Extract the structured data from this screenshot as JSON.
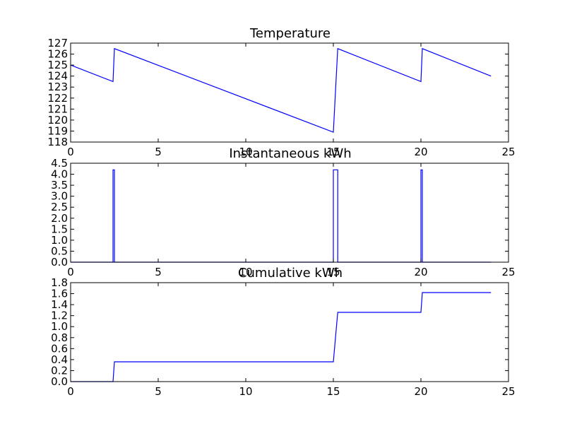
{
  "chart_data": [
    {
      "type": "line",
      "title": "Temperature",
      "xlabel": "",
      "ylabel": "",
      "xlim": [
        0,
        25
      ],
      "ylim": [
        118,
        127
      ],
      "xticks": [
        0,
        5,
        10,
        15,
        20,
        25
      ],
      "yticks": [
        118,
        119,
        120,
        121,
        122,
        123,
        124,
        125,
        126,
        127
      ],
      "xticklabels": [
        "0",
        "5",
        "10",
        "15",
        "20",
        "25"
      ],
      "yticklabels": [
        "118",
        "119",
        "120",
        "121",
        "122",
        "123",
        "124",
        "125",
        "126",
        "127"
      ],
      "grid": false,
      "series": [
        {
          "color": "#0000ff",
          "x": [
            0,
            2.42,
            2.5,
            15.0,
            15.25,
            20.0,
            20.08,
            24.0
          ],
          "y": [
            125.0,
            123.5,
            126.5,
            118.9,
            126.5,
            123.5,
            126.5,
            124.0
          ]
        }
      ]
    },
    {
      "type": "line",
      "title": "Instantaneous kWh",
      "xlabel": "",
      "ylabel": "",
      "xlim": [
        0,
        25
      ],
      "ylim": [
        0,
        4.5
      ],
      "xticks": [
        0,
        5,
        10,
        15,
        20,
        25
      ],
      "yticks": [
        0,
        0.5,
        1.0,
        1.5,
        2.0,
        2.5,
        3.0,
        3.5,
        4.0,
        4.5
      ],
      "xticklabels": [
        "0",
        "5",
        "10",
        "15",
        "20",
        "25"
      ],
      "yticklabels": [
        "0.0",
        "0.5",
        "1.0",
        "1.5",
        "2.0",
        "2.5",
        "3.0",
        "3.5",
        "4.0",
        "4.5"
      ],
      "grid": false,
      "series": [
        {
          "color": "#0000ff",
          "x": [
            0,
            2.42,
            2.42,
            2.5,
            2.5,
            15.0,
            15.0,
            15.25,
            15.25,
            20.0,
            20.0,
            20.08,
            20.08,
            24.0
          ],
          "y": [
            0,
            0,
            4.2,
            4.2,
            0,
            0,
            4.2,
            4.2,
            0,
            0,
            4.2,
            4.2,
            0,
            0
          ]
        }
      ]
    },
    {
      "type": "line",
      "title": "Cumulative kWh",
      "xlabel": "",
      "ylabel": "",
      "xlim": [
        0,
        25
      ],
      "ylim": [
        0,
        1.8
      ],
      "xticks": [
        0,
        5,
        10,
        15,
        20,
        25
      ],
      "yticks": [
        0,
        0.2,
        0.4,
        0.6,
        0.8,
        1.0,
        1.2,
        1.4,
        1.6,
        1.8
      ],
      "xticklabels": [
        "0",
        "5",
        "10",
        "15",
        "20",
        "25"
      ],
      "yticklabels": [
        "0.0",
        "0.2",
        "0.4",
        "0.6",
        "0.8",
        "1.0",
        "1.2",
        "1.4",
        "1.6",
        "1.8"
      ],
      "grid": false,
      "series": [
        {
          "color": "#0000ff",
          "x": [
            0,
            2.42,
            2.5,
            15.0,
            15.25,
            20.0,
            20.08,
            24.0
          ],
          "y": [
            0,
            0,
            0.36,
            0.36,
            1.26,
            1.26,
            1.62,
            1.62
          ]
        }
      ]
    }
  ]
}
